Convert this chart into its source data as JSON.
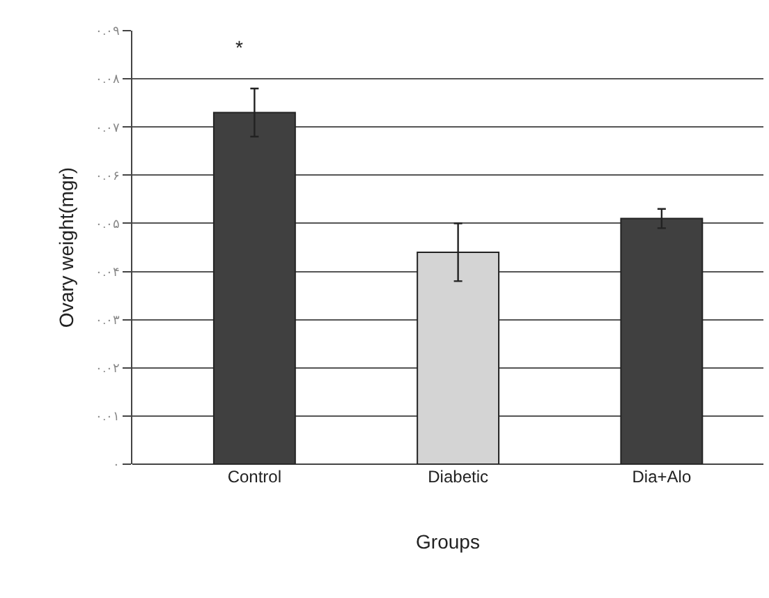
{
  "chart_data": {
    "type": "bar",
    "xlabel": "Groups",
    "ylabel": "Ovary weight(mgr)",
    "categories": [
      "Control",
      "Diabetic",
      "Dia+Alo"
    ],
    "values": [
      0.073,
      0.044,
      0.051
    ],
    "errors": [
      0.005,
      0.006,
      0.002
    ],
    "colors": [
      "#404040",
      "#d4d4d4",
      "#404040"
    ],
    "ylim": [
      0,
      0.09
    ],
    "yticks": [
      {
        "value": 0,
        "label": "۰"
      },
      {
        "value": 0.01,
        "label": "۰.۰۱"
      },
      {
        "value": 0.02,
        "label": "۰.۰۲"
      },
      {
        "value": 0.03,
        "label": "۰.۰۳"
      },
      {
        "value": 0.04,
        "label": "۰.۰۴"
      },
      {
        "value": 0.05,
        "label": "۰.۰۵"
      },
      {
        "value": 0.06,
        "label": "۰.۰۶"
      },
      {
        "value": 0.07,
        "label": "۰.۰۷"
      },
      {
        "value": 0.08,
        "label": "۰.۰۸"
      },
      {
        "value": 0.09,
        "label": "۰.۰۹"
      }
    ],
    "grid": "y",
    "annotations": [
      "*"
    ]
  }
}
